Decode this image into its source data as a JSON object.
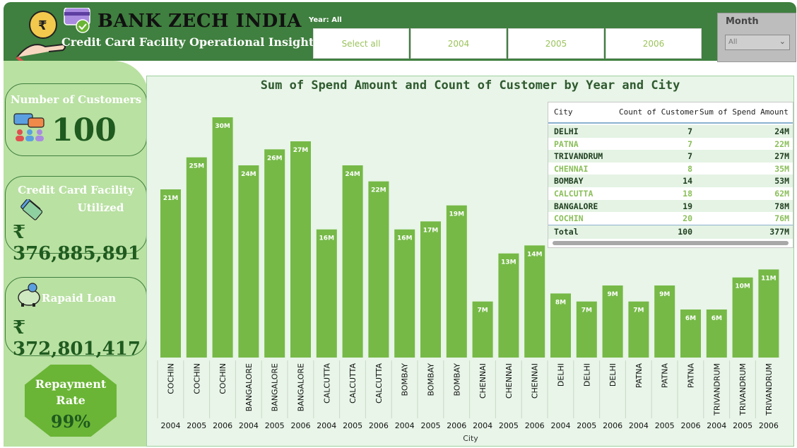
{
  "header": {
    "bank_name": "BANK ZECH INDIA",
    "subtitle": "Credit Card Facility Operational Insight",
    "year_label": "Year: All",
    "year_buttons": [
      "Select all",
      "2004",
      "2005",
      "2006"
    ],
    "month_label": "Month",
    "month_value": "All"
  },
  "kpis": {
    "customers": {
      "title": "Number of Customers",
      "value": "100"
    },
    "utilized": {
      "title_line1": "Credit Card Facility",
      "title_line2": "Utilized",
      "value": "₹ 376,885,891"
    },
    "repaid": {
      "title": "Rapaid Loan",
      "value": "₹ 372,801,417"
    },
    "repayment": {
      "title_line1": "Repayment",
      "title_line2": "Rate",
      "value": "99%"
    }
  },
  "colors": {
    "header_green": "#3f7f3f",
    "bar_green": "#76b947",
    "panel_green": "#b9e1a2",
    "text_dark_green": "#1f5a1f"
  },
  "chart_data": {
    "type": "bar",
    "title": "Sum of Spend Amount and Count of Customer by Year and City",
    "xlabel": "City",
    "ylabel": "",
    "ylim": [
      0,
      30
    ],
    "categories": [
      {
        "city": "COCHIN",
        "year": "2004",
        "value": 21,
        "label": "21M"
      },
      {
        "city": "COCHIN",
        "year": "2005",
        "value": 25,
        "label": "25M"
      },
      {
        "city": "COCHIN",
        "year": "2006",
        "value": 30,
        "label": "30M"
      },
      {
        "city": "BANGALORE",
        "year": "2004",
        "value": 24,
        "label": "24M"
      },
      {
        "city": "BANGALORE",
        "year": "2005",
        "value": 26,
        "label": "26M"
      },
      {
        "city": "BANGALORE",
        "year": "2006",
        "value": 27,
        "label": "27M"
      },
      {
        "city": "CALCUTTA",
        "year": "2004",
        "value": 16,
        "label": "16M"
      },
      {
        "city": "CALCUTTA",
        "year": "2005",
        "value": 24,
        "label": "24M"
      },
      {
        "city": "CALCUTTA",
        "year": "2006",
        "value": 22,
        "label": "22M"
      },
      {
        "city": "BOMBAY",
        "year": "2004",
        "value": 16,
        "label": "16M"
      },
      {
        "city": "BOMBAY",
        "year": "2005",
        "value": 17,
        "label": "17M"
      },
      {
        "city": "BOMBAY",
        "year": "2006",
        "value": 19,
        "label": "19M"
      },
      {
        "city": "CHENNAI",
        "year": "2004",
        "value": 7,
        "label": "7M"
      },
      {
        "city": "CHENNAI",
        "year": "2005",
        "value": 13,
        "label": "13M"
      },
      {
        "city": "CHENNAI",
        "year": "2006",
        "value": 14,
        "label": "14M"
      },
      {
        "city": "DELHI",
        "year": "2004",
        "value": 8,
        "label": "8M"
      },
      {
        "city": "DELHI",
        "year": "2005",
        "value": 7,
        "label": "7M"
      },
      {
        "city": "DELHI",
        "year": "2006",
        "value": 9,
        "label": "9M"
      },
      {
        "city": "PATNA",
        "year": "2004",
        "value": 7,
        "label": "7M"
      },
      {
        "city": "PATNA",
        "year": "2005",
        "value": 9,
        "label": "9M"
      },
      {
        "city": "PATNA",
        "year": "2006",
        "value": 6,
        "label": "6M"
      },
      {
        "city": "TRIVANDRUM",
        "year": "2004",
        "value": 6,
        "label": "6M"
      },
      {
        "city": "TRIVANDRUM",
        "year": "2005",
        "value": 10,
        "label": "10M"
      },
      {
        "city": "TRIVANDRUM",
        "year": "2006",
        "value": 11,
        "label": "11M"
      }
    ]
  },
  "table": {
    "headers": [
      "City",
      "Count of Customer",
      "Sum of Spend Amount"
    ],
    "rows": [
      {
        "city": "DELHI",
        "count": "7",
        "spend": "24M"
      },
      {
        "city": "PATNA",
        "count": "7",
        "spend": "22M"
      },
      {
        "city": "TRIVANDRUM",
        "count": "7",
        "spend": "27M"
      },
      {
        "city": "CHENNAI",
        "count": "8",
        "spend": "35M"
      },
      {
        "city": "BOMBAY",
        "count": "14",
        "spend": "53M"
      },
      {
        "city": "CALCUTTA",
        "count": "18",
        "spend": "62M"
      },
      {
        "city": "BANGALORE",
        "count": "19",
        "spend": "78M"
      },
      {
        "city": "COCHIN",
        "count": "20",
        "spend": "76M"
      }
    ],
    "total": {
      "label": "Total",
      "count": "100",
      "spend": "377M"
    }
  }
}
